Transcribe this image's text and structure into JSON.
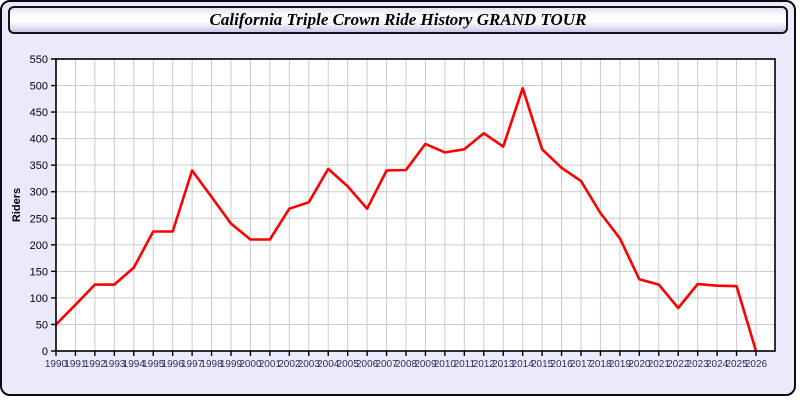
{
  "window": {
    "title": "California Triple Crown Ride History GRAND TOUR"
  },
  "chart_data": {
    "type": "line",
    "title": "California Triple Crown Ride History GRAND TOUR",
    "xlabel": "",
    "ylabel": "Riders",
    "categories": [
      "1990",
      "1991",
      "1992",
      "1993",
      "1994",
      "1995",
      "1996",
      "1997",
      "1998",
      "1999",
      "2000",
      "2001",
      "2002",
      "2003",
      "2004",
      "2005",
      "2006",
      "2007",
      "2008",
      "2009",
      "2010",
      "2011",
      "2012",
      "2013",
      "2014",
      "2015",
      "2016",
      "2017",
      "2018",
      "2019",
      "2020",
      "2021",
      "2022",
      "2023",
      "2024",
      "2025",
      "2026"
    ],
    "series": [
      {
        "name": "Riders",
        "color": "#ff0000",
        "values": [
          50,
          87,
          125,
          125,
          157,
          225,
          225,
          340,
          290,
          240,
          210,
          210,
          268,
          280,
          343,
          310,
          268,
          340,
          341,
          390,
          374,
          380,
          410,
          385,
          495,
          380,
          345,
          320,
          260,
          212,
          135,
          125,
          81,
          126,
          123,
          122,
          0
        ]
      }
    ],
    "ylim": [
      0,
      550
    ],
    "yticks": [
      0,
      50,
      100,
      150,
      200,
      250,
      300,
      350,
      400,
      450,
      500,
      550
    ],
    "grid": true,
    "legend_position": "none",
    "colors": {
      "page_background": "#eaeafa",
      "plot_background": "#ffffff",
      "gridline": "#cccccc",
      "axis": "#000000",
      "line": "#ff0000",
      "x_tick_label": "#2e2e5e",
      "y_tick_label": "#00001e",
      "y_axis_label": "#00001e"
    }
  }
}
